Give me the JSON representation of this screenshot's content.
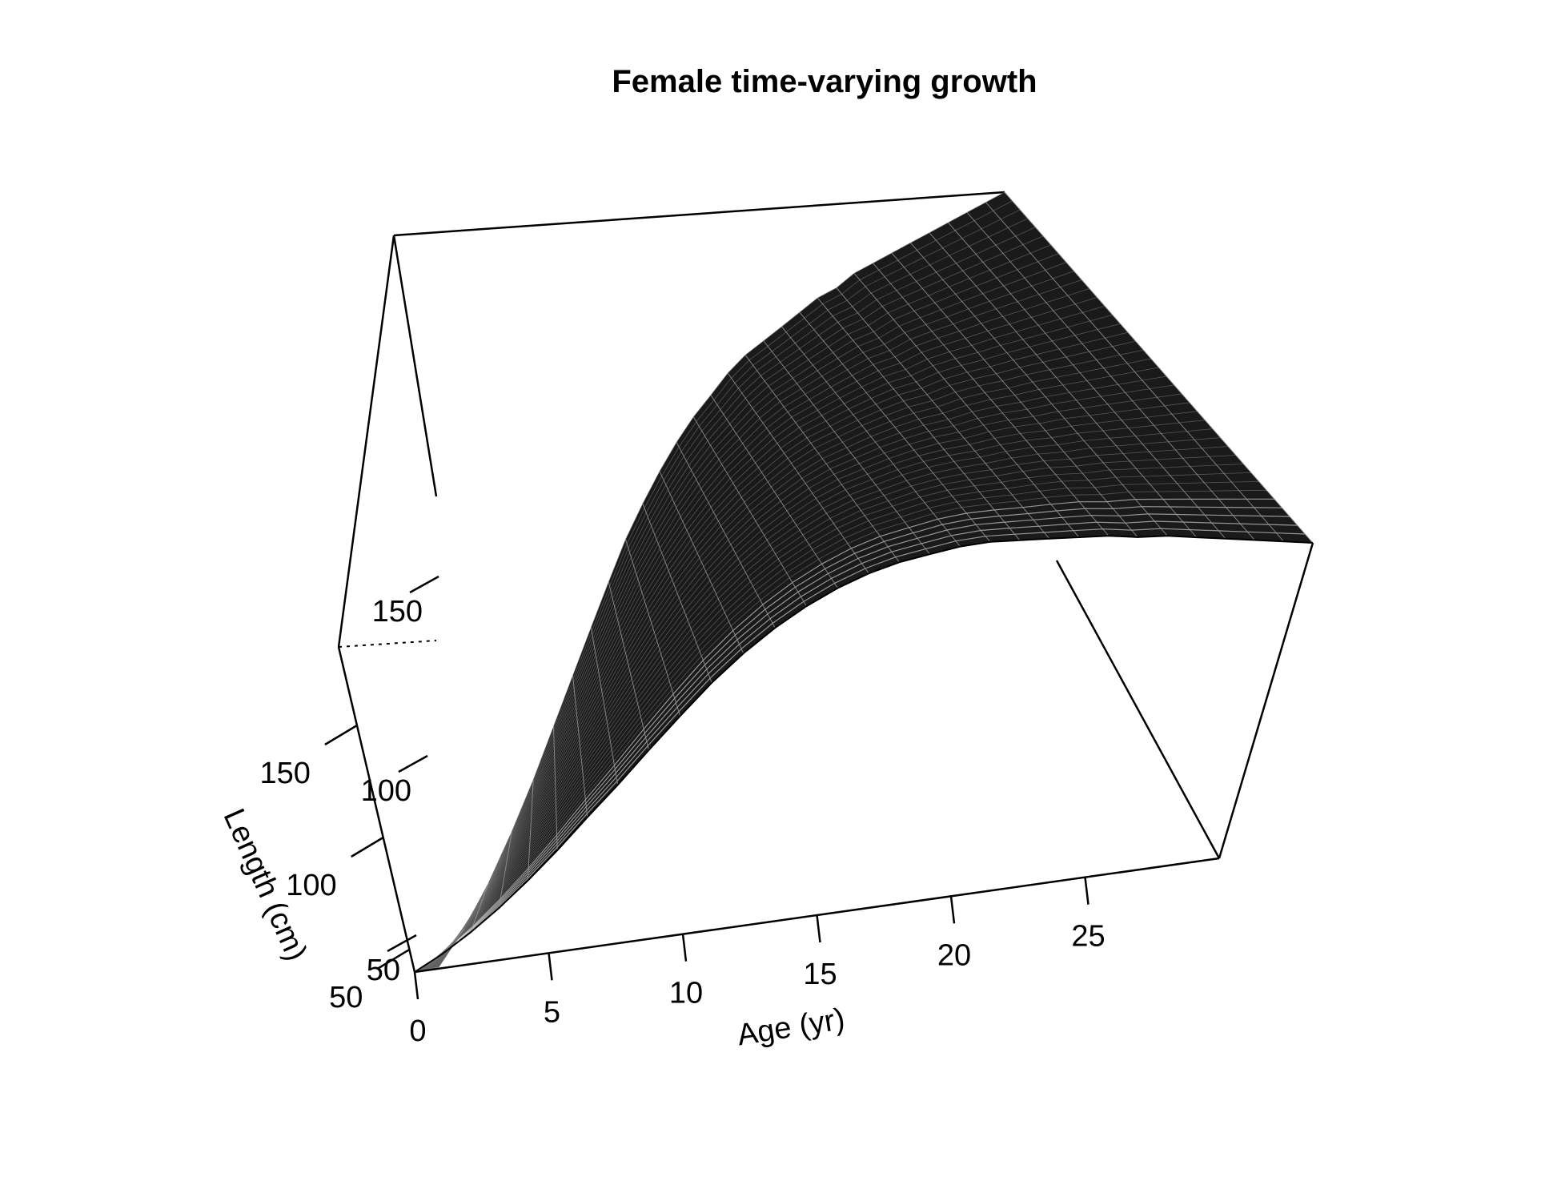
{
  "chart_data": {
    "type": "surface-3d-perspective",
    "title": "Female time-varying growth",
    "xlabel": "Age (yr)",
    "zlabel": "Length (cm)",
    "x_ticks": [
      "0",
      "5",
      "10",
      "15",
      "20",
      "25"
    ],
    "z_ticks": [
      "50",
      "100",
      "150"
    ],
    "x_range": [
      0,
      30
    ],
    "z_range": [
      40,
      185
    ],
    "x_ages": [
      0,
      1,
      2,
      3,
      4,
      5,
      6,
      7,
      8,
      9,
      10,
      11,
      12,
      13,
      14,
      15,
      16,
      17,
      18,
      19,
      20,
      21,
      22,
      23,
      24,
      25,
      26,
      27,
      28,
      29,
      30
    ],
    "series": [
      {
        "values": [
          40,
          44,
          49,
          55,
          62,
          70,
          79,
          88,
          98,
          108,
          118,
          127,
          135,
          142,
          148,
          153,
          157,
          160,
          163,
          165,
          166,
          167,
          168,
          169,
          169,
          170,
          170,
          170,
          170,
          170,
          170
        ]
      },
      {
        "values": [
          40,
          50,
          62,
          75,
          88,
          101,
          113,
          124,
          134,
          143,
          150,
          156,
          161,
          165,
          168,
          171,
          173,
          174,
          175,
          176,
          177,
          177,
          178,
          178,
          178,
          178,
          178,
          178,
          178,
          178,
          178
        ]
      }
    ],
    "wireframe_color": "#000000",
    "background": "#ffffff"
  }
}
